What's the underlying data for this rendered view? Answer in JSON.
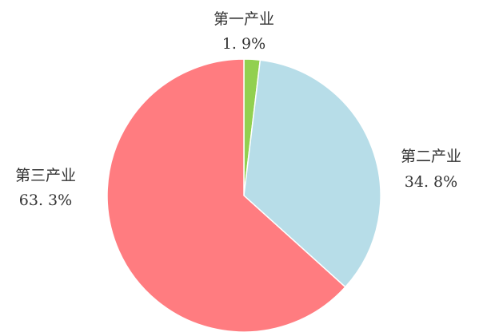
{
  "chart_data": {
    "type": "pie",
    "categories": [
      "第一产业",
      "第二产业",
      "第三产业"
    ],
    "values": [
      1.9,
      34.8,
      63.3
    ],
    "value_labels": [
      "1. 9%",
      "34. 8%",
      "63. 3%"
    ],
    "colors": [
      "#92d050",
      "#b7dde8",
      "#ff7c80"
    ],
    "start": "12 o'clock",
    "direction": "clockwise",
    "legend": "none"
  }
}
